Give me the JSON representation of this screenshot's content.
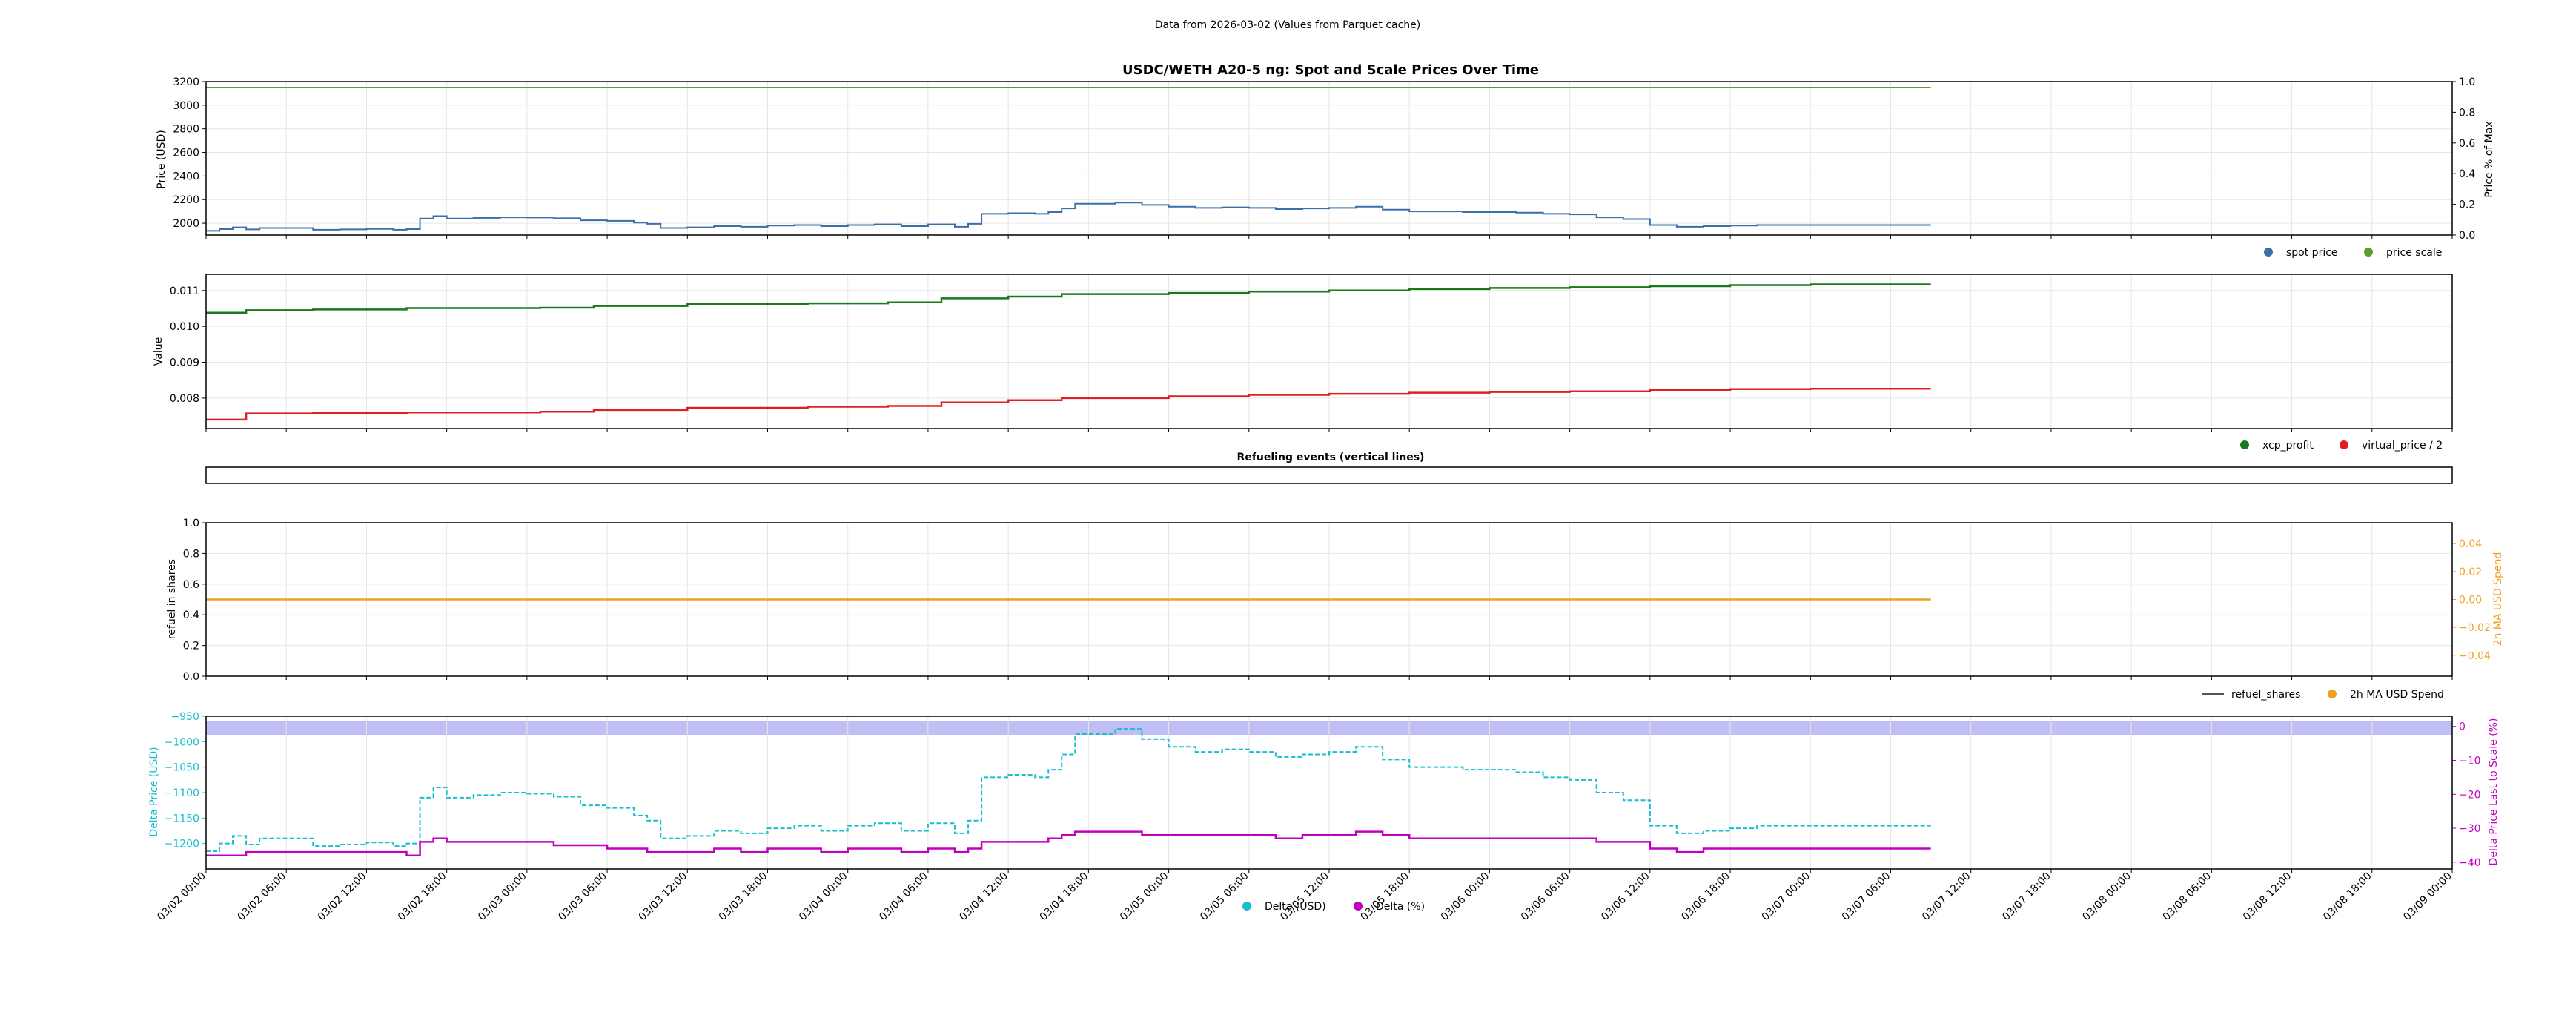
{
  "header": {
    "suptitle": "Data from 2026-03-02 (Values from Parquet cache)",
    "title": "USDC/WETH A20-5 ng: Spot and Scale Prices Over Time"
  },
  "colors": {
    "spot": "#3b6fa8",
    "scale": "#5aa02c",
    "xcp": "#1a7a1a",
    "vprice": "#e02020",
    "refuel": "#555555",
    "usd_ma": "#f0a020",
    "delta_usd": "#17becf",
    "delta_pct": "#c000c0",
    "band": "#b4b4f5"
  },
  "x_ticks": [
    "03/02 00:00",
    "03/02 06:00",
    "03/02 12:00",
    "03/02 18:00",
    "03/03 00:00",
    "03/03 06:00",
    "03/03 12:00",
    "03/03 18:00",
    "03/04 00:00",
    "03/04 06:00",
    "03/04 12:00",
    "03/04 18:00",
    "03/05 00:00",
    "03/05 06:00",
    "03/05 12:00",
    "03/05 18:00",
    "03/06 00:00",
    "03/06 06:00",
    "03/06 12:00",
    "03/06 18:00",
    "03/07 00:00",
    "03/07 06:00",
    "03/07 12:00",
    "03/07 18:00",
    "03/08 00:00",
    "03/08 06:00",
    "03/08 12:00",
    "03/08 18:00",
    "03/09 00:00"
  ],
  "chart_data": [
    {
      "type": "line",
      "x_range_hours": [
        0,
        168
      ],
      "ylabel": "Price (USD)",
      "y2label": "Price % of Max",
      "ylim": [
        1900,
        3200
      ],
      "yticks": [
        2000,
        2200,
        2400,
        2600,
        2800,
        3000,
        3200
      ],
      "y2lim": [
        0.0,
        1.0
      ],
      "y2ticks": [
        "0.0",
        "0.2",
        "0.4",
        "0.6",
        "0.8",
        "1.0"
      ],
      "legend": [
        "spot price",
        "price scale"
      ],
      "series": [
        {
          "name": "spot price",
          "x": [
            0,
            1,
            2,
            3,
            4,
            6,
            8,
            10,
            12,
            14,
            15,
            16,
            17,
            18,
            20,
            22,
            24,
            26,
            28,
            30,
            32,
            33,
            34,
            36,
            38,
            40,
            42,
            44,
            46,
            48,
            50,
            52,
            54,
            56,
            57,
            58,
            60,
            62,
            63,
            64,
            65,
            66,
            68,
            70,
            72,
            74,
            76,
            78,
            80,
            82,
            84,
            86,
            88,
            90,
            92,
            94,
            96,
            98,
            100,
            102,
            104,
            106,
            108,
            110,
            112,
            114,
            116,
            118,
            120,
            122,
            124,
            126,
            128,
            129
          ],
          "values": [
            1935,
            1950,
            1965,
            1948,
            1960,
            1960,
            1945,
            1948,
            1952,
            1945,
            1950,
            2040,
            2060,
            2040,
            2045,
            2050,
            2048,
            2042,
            2025,
            2020,
            2005,
            1995,
            1960,
            1965,
            1975,
            1970,
            1980,
            1985,
            1975,
            1985,
            1990,
            1975,
            1990,
            1970,
            1995,
            2080,
            2085,
            2080,
            2095,
            2125,
            2165,
            2165,
            2175,
            2155,
            2140,
            2130,
            2135,
            2130,
            2120,
            2125,
            2130,
            2140,
            2115,
            2100,
            2100,
            2095,
            2095,
            2090,
            2080,
            2075,
            2050,
            2035,
            1985,
            1970,
            1975,
            1980,
            1985,
            1985,
            1985,
            1985,
            1985,
            1985,
            1985,
            1985
          ]
        },
        {
          "name": "price scale",
          "x": [
            0,
            129
          ],
          "values": [
            3150,
            3150
          ]
        }
      ]
    },
    {
      "type": "line",
      "ylabel": "Value",
      "ylim": [
        0.00715,
        0.01145
      ],
      "yticks": [
        "0.008",
        "0.009",
        "0.010",
        "0.011"
      ],
      "legend": [
        "xcp_profit",
        "virtual_price / 2"
      ],
      "series": [
        {
          "name": "xcp_profit",
          "x": [
            0,
            3,
            8,
            15,
            25,
            29,
            36,
            45,
            51,
            55,
            60,
            64,
            72,
            78,
            84,
            90,
            96,
            102,
            108,
            114,
            120,
            129
          ],
          "values": [
            0.01038,
            0.01045,
            0.01047,
            0.01051,
            0.01052,
            0.01057,
            0.01062,
            0.01064,
            0.01067,
            0.01078,
            0.01083,
            0.0109,
            0.01093,
            0.01097,
            0.011,
            0.01104,
            0.01107,
            0.01109,
            0.01112,
            0.01115,
            0.01117,
            0.01117
          ]
        },
        {
          "name": "virtual_price / 2",
          "x": [
            0,
            3,
            8,
            15,
            25,
            29,
            36,
            45,
            51,
            55,
            60,
            64,
            72,
            78,
            84,
            90,
            96,
            102,
            108,
            114,
            120,
            129
          ],
          "values": [
            0.0074,
            0.00757,
            0.00758,
            0.0076,
            0.00762,
            0.00767,
            0.00773,
            0.00776,
            0.00778,
            0.00788,
            0.00794,
            0.008,
            0.00805,
            0.00809,
            0.00812,
            0.00815,
            0.00817,
            0.00819,
            0.00822,
            0.00825,
            0.00826,
            0.00826
          ]
        }
      ]
    },
    {
      "type": "line",
      "title": "Refueling events (vertical lines)",
      "series": []
    },
    {
      "type": "line",
      "ylabel": "refuel in shares",
      "y2label": "2h MA USD Spend",
      "ylim": [
        0.0,
        1.0
      ],
      "yticks": [
        "0.0",
        "0.2",
        "0.4",
        "0.6",
        "0.8",
        "1.0"
      ],
      "y2lim": [
        -0.055,
        0.055
      ],
      "y2ticks": [
        "-0.04",
        "-0.02",
        "0.00",
        "0.02",
        "0.04"
      ],
      "legend": [
        "refuel_shares",
        "2h MA USD Spend"
      ],
      "series": [
        {
          "name": "refuel_shares",
          "x": [
            0,
            129
          ],
          "values": [
            0.5,
            0.5
          ]
        },
        {
          "name": "2h MA USD Spend",
          "x": [
            0,
            129
          ],
          "values": [
            0.0,
            0.0
          ]
        }
      ]
    },
    {
      "type": "line",
      "ylabel": "Delta Price (USD)",
      "y2label": "Delta Price Last to Scale (%)",
      "ylim": [
        -1250,
        -950
      ],
      "yticks": [
        "-950",
        "-1000",
        "-1050",
        "-1100",
        "-1150",
        "-1200"
      ],
      "y2lim": [
        -42,
        3
      ],
      "y2ticks": [
        "0",
        "-10",
        "-20",
        "-30",
        "-40"
      ],
      "legend": [
        "Delta (USD)",
        "Delta (%)"
      ],
      "series": [
        {
          "name": "Delta (USD)",
          "x": [
            0,
            1,
            2,
            3,
            4,
            6,
            8,
            10,
            12,
            14,
            15,
            16,
            17,
            18,
            20,
            22,
            24,
            26,
            28,
            30,
            32,
            33,
            34,
            36,
            38,
            40,
            42,
            44,
            46,
            48,
            50,
            52,
            54,
            56,
            57,
            58,
            60,
            62,
            63,
            64,
            65,
            66,
            68,
            70,
            72,
            74,
            76,
            78,
            80,
            82,
            84,
            86,
            88,
            90,
            92,
            94,
            96,
            98,
            100,
            102,
            104,
            106,
            108,
            110,
            112,
            114,
            116,
            118,
            120,
            122,
            124,
            126,
            128,
            129
          ],
          "values": [
            -1215,
            -1200,
            -1185,
            -1202,
            -1190,
            -1190,
            -1205,
            -1202,
            -1198,
            -1205,
            -1200,
            -1110,
            -1090,
            -1110,
            -1105,
            -1100,
            -1102,
            -1108,
            -1125,
            -1130,
            -1145,
            -1155,
            -1190,
            -1185,
            -1175,
            -1180,
            -1170,
            -1165,
            -1175,
            -1165,
            -1160,
            -1175,
            -1160,
            -1180,
            -1155,
            -1070,
            -1065,
            -1070,
            -1055,
            -1025,
            -985,
            -985,
            -975,
            -995,
            -1010,
            -1020,
            -1015,
            -1020,
            -1030,
            -1025,
            -1020,
            -1010,
            -1035,
            -1050,
            -1050,
            -1055,
            -1055,
            -1060,
            -1070,
            -1075,
            -1100,
            -1115,
            -1165,
            -1180,
            -1175,
            -1170,
            -1165,
            -1165,
            -1165,
            -1165,
            -1165,
            -1165,
            -1165,
            -1165
          ]
        },
        {
          "name": "Delta (%)",
          "x": [
            0,
            3,
            8,
            15,
            16,
            17,
            18,
            20,
            22,
            24,
            26,
            28,
            30,
            32,
            33,
            34,
            36,
            38,
            40,
            42,
            44,
            46,
            48,
            50,
            52,
            54,
            56,
            57,
            58,
            60,
            62,
            63,
            64,
            65,
            66,
            68,
            70,
            72,
            74,
            76,
            78,
            80,
            82,
            84,
            86,
            88,
            90,
            92,
            94,
            96,
            98,
            100,
            102,
            104,
            106,
            108,
            110,
            112,
            114,
            116,
            118,
            120,
            122,
            124,
            126,
            128,
            129
          ],
          "values": [
            -38,
            -37,
            -37,
            -38,
            -34,
            -33,
            -34,
            -34,
            -34,
            -34,
            -35,
            -35,
            -36,
            -36,
            -37,
            -37,
            -37,
            -36,
            -37,
            -36,
            -36,
            -37,
            -36,
            -36,
            -37,
            -36,
            -37,
            -36,
            -34,
            -34,
            -34,
            -33,
            -32,
            -31,
            -31,
            -31,
            -32,
            -32,
            -32,
            -32,
            -32,
            -33,
            -32,
            -32,
            -31,
            -32,
            -33,
            -33,
            -33,
            -33,
            -33,
            -33,
            -33,
            -34,
            -34,
            -36,
            -37,
            -36,
            -36,
            -36,
            -36,
            -36,
            -36,
            -36,
            -36,
            -36,
            -36
          ]
        }
      ]
    }
  ]
}
